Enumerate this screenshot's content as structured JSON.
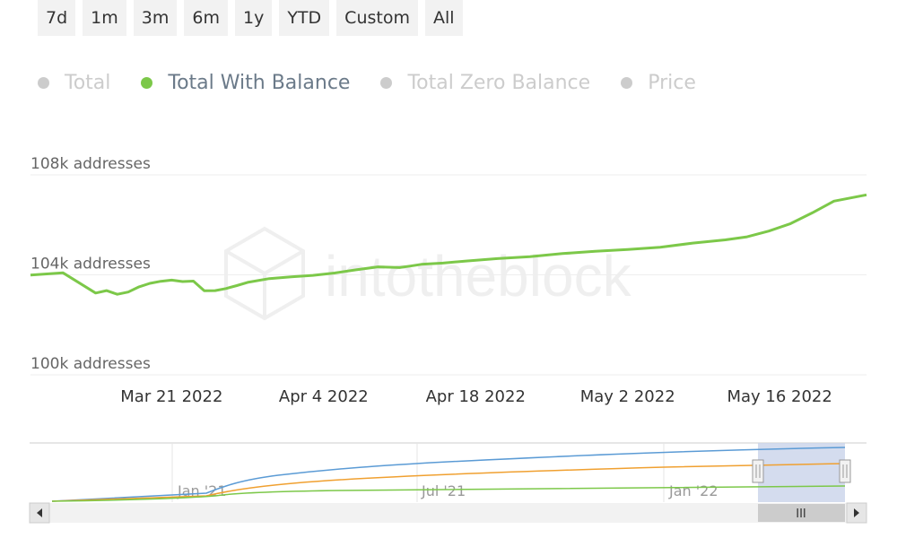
{
  "range_buttons": [
    "7d",
    "1m",
    "3m",
    "6m",
    "1y",
    "YTD",
    "Custom",
    "All"
  ],
  "legend": [
    {
      "label": "Total",
      "active": false
    },
    {
      "label": "Total With Balance",
      "active": true
    },
    {
      "label": "Total Zero Balance",
      "active": false
    },
    {
      "label": "Price",
      "active": false
    }
  ],
  "watermark": "intotheblock",
  "colors": {
    "total_with_balance": "#7cc849",
    "total": "#5b9bd5",
    "total_zero_balance": "#f0a030",
    "inactive": "#cccccc",
    "grid": "#eeeeee",
    "navigator_mask": "#ccd6eb"
  },
  "chart_data": {
    "type": "line",
    "x_range": [
      "2022-03-08",
      "2022-05-24"
    ],
    "y_range": [
      100000,
      108000
    ],
    "y_ticks": [
      {
        "value": 100000,
        "label": "100k addresses"
      },
      {
        "value": 104000,
        "label": "104k addresses"
      },
      {
        "value": 108000,
        "label": "108k addresses"
      }
    ],
    "x_ticks": [
      {
        "date": "2022-03-21",
        "label": "Mar 21 2022"
      },
      {
        "date": "2022-04-04",
        "label": "Apr 4 2022"
      },
      {
        "date": "2022-04-18",
        "label": "Apr 18 2022"
      },
      {
        "date": "2022-05-02",
        "label": "May 2 2022"
      },
      {
        "date": "2022-05-16",
        "label": "May 16 2022"
      }
    ],
    "series": [
      {
        "name": "Total With Balance",
        "x": [
          "2022-03-08",
          "2022-03-11",
          "2022-03-14",
          "2022-03-15",
          "2022-03-16",
          "2022-03-17",
          "2022-03-18",
          "2022-03-19",
          "2022-03-20",
          "2022-03-21",
          "2022-03-22",
          "2022-03-23",
          "2022-03-24",
          "2022-03-25",
          "2022-03-26",
          "2022-03-27",
          "2022-03-28",
          "2022-03-30",
          "2022-04-01",
          "2022-04-03",
          "2022-04-05",
          "2022-04-07",
          "2022-04-09",
          "2022-04-11",
          "2022-04-12",
          "2022-04-13",
          "2022-04-15",
          "2022-04-17",
          "2022-04-20",
          "2022-04-23",
          "2022-04-26",
          "2022-04-29",
          "2022-05-02",
          "2022-05-05",
          "2022-05-08",
          "2022-05-11",
          "2022-05-13",
          "2022-05-15",
          "2022-05-17",
          "2022-05-19",
          "2022-05-21",
          "2022-05-24"
        ],
        "y": [
          103990,
          104080,
          103270,
          103370,
          103220,
          103310,
          103520,
          103660,
          103740,
          103790,
          103730,
          103750,
          103360,
          103370,
          103450,
          103570,
          103700,
          103850,
          103920,
          103980,
          104070,
          104200,
          104320,
          104290,
          104350,
          104420,
          104470,
          104550,
          104650,
          104730,
          104850,
          104940,
          105010,
          105100,
          105270,
          105400,
          105520,
          105750,
          106050,
          106480,
          106950,
          107200
        ]
      }
    ]
  },
  "navigator": {
    "x_labels": [
      "Jan '21",
      "Jul '21",
      "Jan '22"
    ],
    "scrollbar_grip": "III"
  }
}
